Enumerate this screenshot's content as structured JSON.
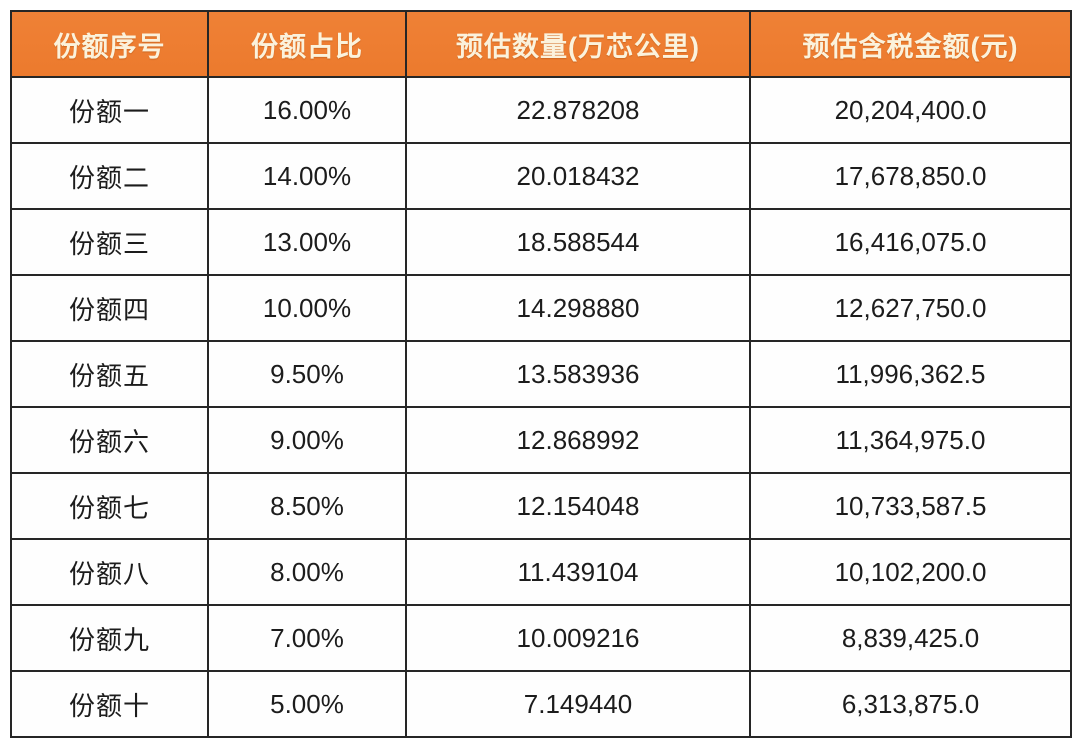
{
  "colors": {
    "header_bg": "#ED7D31",
    "header_text": "#FBF2DC",
    "grid_border": "#262626",
    "row_bg": "#FEFEFE",
    "cell_text": "#1C1C1C"
  },
  "table": {
    "columns": [
      {
        "label": "份额序号"
      },
      {
        "label": "份额占比"
      },
      {
        "label": "预估数量(万芯公里)"
      },
      {
        "label": "预估含税金额(元)"
      }
    ],
    "rows": [
      {
        "name": "份额一",
        "ratio": "16.00%",
        "qty": "22.878208",
        "amount": "20,204,400.0"
      },
      {
        "name": "份额二",
        "ratio": "14.00%",
        "qty": "20.018432",
        "amount": "17,678,850.0"
      },
      {
        "name": "份额三",
        "ratio": "13.00%",
        "qty": "18.588544",
        "amount": "16,416,075.0"
      },
      {
        "name": "份额四",
        "ratio": "10.00%",
        "qty": "14.298880",
        "amount": "12,627,750.0"
      },
      {
        "name": "份额五",
        "ratio": "9.50%",
        "qty": "13.583936",
        "amount": "11,996,362.5"
      },
      {
        "name": "份额六",
        "ratio": "9.00%",
        "qty": "12.868992",
        "amount": "11,364,975.0"
      },
      {
        "name": "份额七",
        "ratio": "8.50%",
        "qty": "12.154048",
        "amount": "10,733,587.5"
      },
      {
        "name": "份额八",
        "ratio": "8.00%",
        "qty": "11.439104",
        "amount": "10,102,200.0"
      },
      {
        "name": "份额九",
        "ratio": "7.00%",
        "qty": "10.009216",
        "amount": "8,839,425.0"
      },
      {
        "name": "份额十",
        "ratio": "5.00%",
        "qty": "7.149440",
        "amount": "6,313,875.0"
      }
    ]
  }
}
